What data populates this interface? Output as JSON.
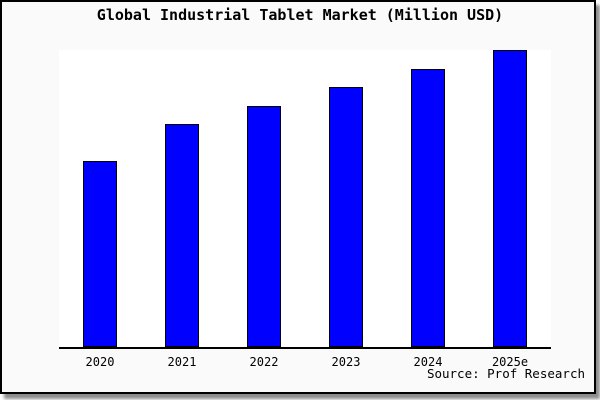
{
  "chart_data": {
    "type": "bar",
    "title": "Global Industrial Tablet Market (Million USD)",
    "categories": [
      "2020",
      "2021",
      "2022",
      "2023",
      "2024",
      "2025e"
    ],
    "values": [
      500,
      600,
      650,
      700,
      750,
      800
    ],
    "unit": "Million USD",
    "xlabel": "",
    "ylabel": "",
    "ylim": [
      0,
      800
    ],
    "yaxis_labels_visible": false,
    "grid": false,
    "legend": false,
    "bar_color": "#0000ff",
    "bar_border_color": "#000000",
    "plot_bg": "#ffffff",
    "frame_bg": "#fafafa",
    "source_note": "Source: Prof Research"
  }
}
